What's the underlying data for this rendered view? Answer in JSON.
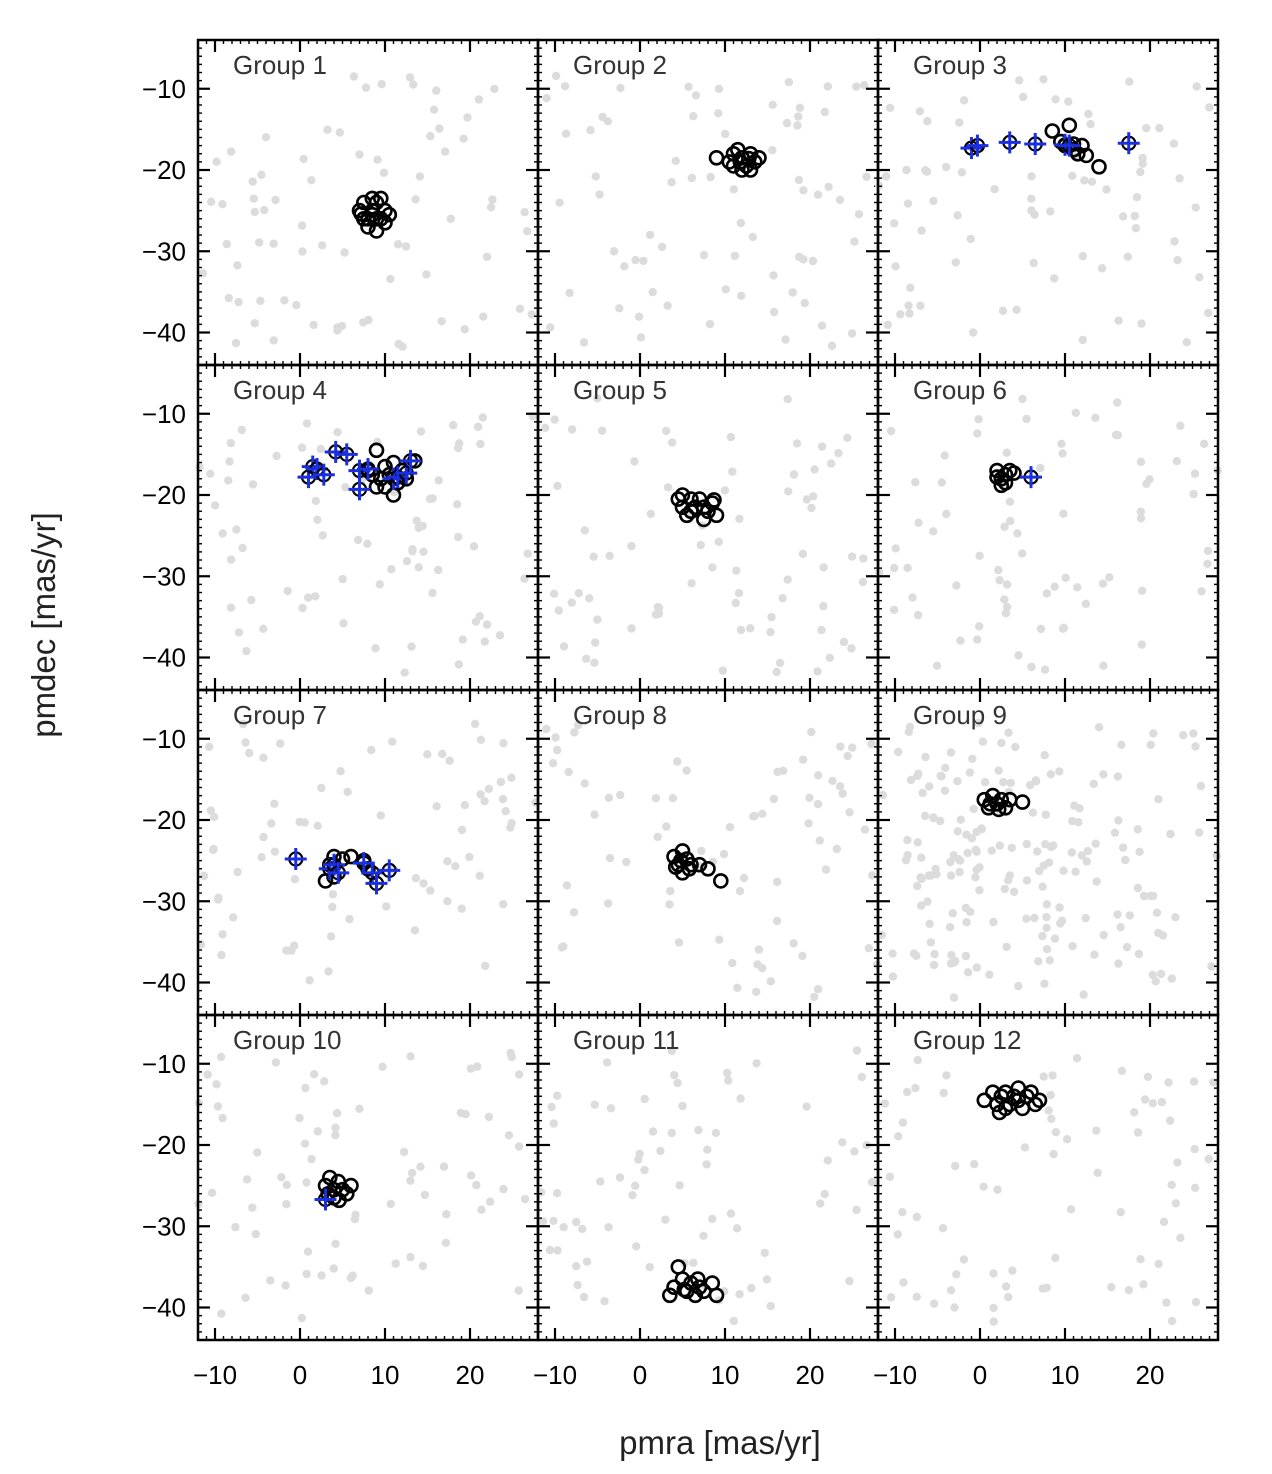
{
  "chart_data": {
    "type": "scatter",
    "layout": {
      "rows": 4,
      "cols": 3
    },
    "xlabel": "pmra [mas/yr]",
    "ylabel": "pmdec [mas/yr]",
    "xlim": [
      -12,
      28
    ],
    "ylim": [
      -44,
      -4
    ],
    "xticks": [
      -10,
      0,
      10,
      20
    ],
    "yticks": [
      -10,
      -20,
      -30,
      -40
    ],
    "colors": {
      "field": "#dcdcdc",
      "members": "#000000",
      "special": "#1a2fe0"
    },
    "panels": [
      {
        "title": "Group 1",
        "members": [
          [
            7,
            -25
          ],
          [
            7.5,
            -24
          ],
          [
            8,
            -26
          ],
          [
            8.5,
            -25
          ],
          [
            9,
            -24
          ],
          [
            9.5,
            -26
          ],
          [
            10,
            -25
          ],
          [
            8,
            -27
          ],
          [
            9,
            -27.5
          ],
          [
            10,
            -26.5
          ],
          [
            8.5,
            -23.5
          ],
          [
            9.5,
            -23.5
          ],
          [
            7.5,
            -26
          ],
          [
            10.5,
            -25.5
          ],
          [
            8.5,
            -25.5
          ],
          [
            9,
            -26
          ],
          [
            7.2,
            -25.4
          ]
        ],
        "special": []
      },
      {
        "title": "Group 2",
        "members": [
          [
            9,
            -18.5
          ],
          [
            10.5,
            -19
          ],
          [
            11,
            -18
          ],
          [
            11.5,
            -17.5
          ],
          [
            12,
            -18.5
          ],
          [
            12.5,
            -19.5
          ],
          [
            13,
            -18
          ],
          [
            13.5,
            -19
          ],
          [
            14,
            -18.5
          ],
          [
            12,
            -20
          ],
          [
            11,
            -19.5
          ],
          [
            13,
            -20
          ],
          [
            12.8,
            -18.6
          ],
          [
            11.8,
            -19
          ]
        ],
        "special": []
      },
      {
        "title": "Group 3",
        "members": [
          [
            8.5,
            -15.2
          ],
          [
            9.5,
            -16.5
          ],
          [
            10,
            -17
          ],
          [
            10.5,
            -14.5
          ],
          [
            11,
            -17.5
          ],
          [
            11.5,
            -18
          ],
          [
            12,
            -17
          ],
          [
            12.5,
            -18.2
          ],
          [
            14,
            -19.6
          ],
          [
            11,
            -16.8
          ]
        ],
        "special": [
          [
            -1,
            -17.3
          ],
          [
            -0.3,
            -17
          ],
          [
            3.5,
            -16.6
          ],
          [
            6.5,
            -16.8
          ],
          [
            10,
            -16.9
          ],
          [
            10.5,
            -17
          ],
          [
            17.5,
            -16.7
          ]
        ]
      },
      {
        "title": "Group 4",
        "members": [
          [
            8,
            -17
          ],
          [
            9,
            -14.5
          ],
          [
            9.5,
            -18
          ],
          [
            10,
            -16.5
          ],
          [
            10.5,
            -17.5
          ],
          [
            11,
            -16
          ],
          [
            11.5,
            -18.5
          ],
          [
            12,
            -17
          ],
          [
            12.5,
            -18
          ],
          [
            13.5,
            -15.8
          ],
          [
            11,
            -20
          ],
          [
            9,
            -19
          ],
          [
            10,
            -19
          ],
          [
            8.5,
            -17.5
          ]
        ],
        "special": [
          [
            1,
            -17.8
          ],
          [
            1.5,
            -16.5
          ],
          [
            2,
            -16.8
          ],
          [
            2.8,
            -17.5
          ],
          [
            4.2,
            -14.7
          ],
          [
            5.5,
            -15
          ],
          [
            7,
            -17
          ],
          [
            7,
            -19.3
          ],
          [
            8,
            -16.8
          ],
          [
            11,
            -18
          ],
          [
            11.5,
            -17.8
          ],
          [
            12.5,
            -17.3
          ],
          [
            13,
            -15.8
          ]
        ]
      },
      {
        "title": "Group 5",
        "members": [
          [
            4.5,
            -20.5
          ],
          [
            5,
            -21.5
          ],
          [
            5.5,
            -22.5
          ],
          [
            6,
            -20.5
          ],
          [
            6.5,
            -21.5
          ],
          [
            7,
            -20.5
          ],
          [
            7.5,
            -21.5
          ],
          [
            8,
            -22
          ],
          [
            8.5,
            -21
          ],
          [
            9,
            -22.5
          ],
          [
            6,
            -22
          ],
          [
            5,
            -20
          ],
          [
            7.5,
            -23
          ],
          [
            8.7,
            -20.6
          ]
        ],
        "special": []
      },
      {
        "title": "Group 6",
        "members": [
          [
            2,
            -17
          ],
          [
            2.5,
            -18
          ],
          [
            3,
            -17.5
          ],
          [
            3.5,
            -17
          ],
          [
            4,
            -17.3
          ],
          [
            2.5,
            -18.8
          ],
          [
            3,
            -18.5
          ],
          [
            2,
            -17.8
          ]
        ],
        "special": [
          [
            6,
            -17.8
          ]
        ]
      },
      {
        "title": "Group 7",
        "members": [
          [
            3,
            -27.5
          ],
          [
            3.5,
            -25.5
          ],
          [
            4,
            -24.5
          ],
          [
            5,
            -24.8
          ],
          [
            6,
            -24.5
          ],
          [
            7.5,
            -25
          ],
          [
            8,
            -26
          ],
          [
            4,
            -27
          ]
        ],
        "special": [
          [
            -0.5,
            -24.8
          ],
          [
            3.5,
            -26
          ],
          [
            4,
            -25.5
          ],
          [
            4.5,
            -26.5
          ],
          [
            7.5,
            -25.3
          ],
          [
            8.5,
            -26.5
          ],
          [
            9,
            -27.8
          ],
          [
            10.5,
            -26.2
          ]
        ]
      },
      {
        "title": "Group 8",
        "members": [
          [
            4,
            -24.5
          ],
          [
            4.5,
            -25.5
          ],
          [
            5,
            -23.8
          ],
          [
            5.5,
            -24.8
          ],
          [
            6,
            -25.5
          ],
          [
            5,
            -26.5
          ],
          [
            7,
            -25.5
          ],
          [
            8,
            -26
          ],
          [
            9.5,
            -27.5
          ],
          [
            4.8,
            -25
          ],
          [
            5.8,
            -26
          ],
          [
            4.2,
            -25.8
          ]
        ],
        "special": []
      },
      {
        "title": "Group 9",
        "members": [
          [
            0.5,
            -17.5
          ],
          [
            1,
            -18.5
          ],
          [
            1.5,
            -17
          ],
          [
            2,
            -18
          ],
          [
            2.5,
            -17.5
          ],
          [
            3,
            -18.5
          ],
          [
            3.5,
            -17.5
          ],
          [
            5,
            -17.8
          ],
          [
            1.2,
            -18
          ],
          [
            2.2,
            -18.7
          ]
        ],
        "special": []
      },
      {
        "title": "Group 10",
        "members": [
          [
            3,
            -25
          ],
          [
            3.5,
            -24
          ],
          [
            4,
            -25.5
          ],
          [
            4.5,
            -24.5
          ],
          [
            5,
            -25.5
          ],
          [
            4,
            -26.5
          ],
          [
            5.5,
            -26
          ],
          [
            6,
            -25
          ],
          [
            4.6,
            -26.8
          ],
          [
            3.3,
            -26
          ]
        ],
        "special": [
          [
            3,
            -26.7
          ]
        ]
      },
      {
        "title": "Group 11",
        "members": [
          [
            3.5,
            -38.5
          ],
          [
            4,
            -37.5
          ],
          [
            4.5,
            -35
          ],
          [
            5,
            -36.5
          ],
          [
            5.5,
            -38
          ],
          [
            6,
            -37
          ],
          [
            6.5,
            -38.5
          ],
          [
            7,
            -37.5
          ],
          [
            7.5,
            -38
          ],
          [
            8.5,
            -37
          ],
          [
            9,
            -38.5
          ],
          [
            5.2,
            -37.8
          ],
          [
            6.8,
            -36.5
          ]
        ],
        "special": []
      },
      {
        "title": "Group 12",
        "members": [
          [
            0.5,
            -14.5
          ],
          [
            1.5,
            -13.5
          ],
          [
            2,
            -15
          ],
          [
            2.5,
            -14
          ],
          [
            3,
            -13.5
          ],
          [
            3.5,
            -15
          ],
          [
            4,
            -14
          ],
          [
            4.5,
            -14.5
          ],
          [
            5,
            -15.5
          ],
          [
            5.5,
            -14
          ],
          [
            6,
            -13.5
          ],
          [
            6.5,
            -15
          ],
          [
            7,
            -14.5
          ],
          [
            2.3,
            -16
          ],
          [
            3,
            -15.5
          ],
          [
            4.5,
            -13
          ]
        ],
        "special": []
      }
    ]
  }
}
